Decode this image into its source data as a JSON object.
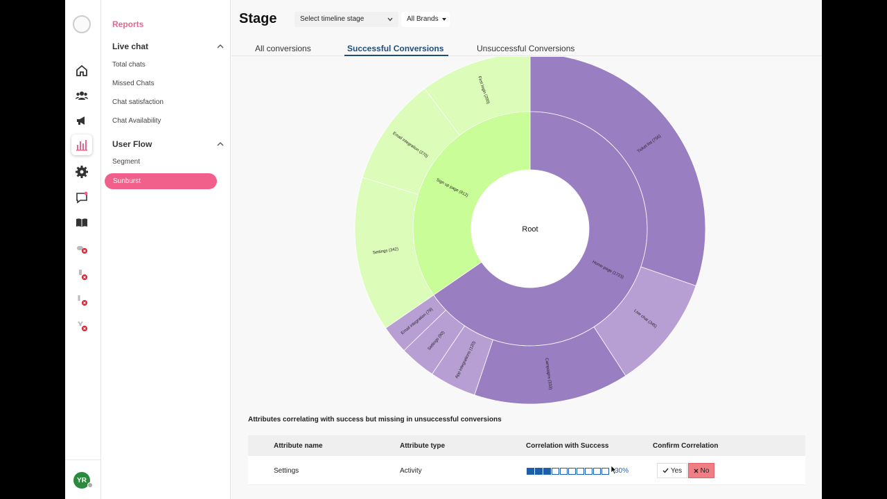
{
  "rail": {
    "avatar_initials": "YR",
    "icons": [
      "home-icon",
      "users-icon",
      "megaphone-icon",
      "reports-icon",
      "settings-icon",
      "chat-icon",
      "book-icon",
      "integration-error-icon",
      "plug-error-icon",
      "plug-error-icon-2",
      "plug-error-icon-3"
    ]
  },
  "menu": {
    "title": "Reports",
    "sections": [
      {
        "label": "Live chat",
        "items": [
          "Total chats",
          "Missed Chats",
          "Chat satisfaction",
          "Chat Availability"
        ]
      },
      {
        "label": "User Flow",
        "items": [
          "Segment",
          "Sunburst"
        ]
      }
    ],
    "active_item": "Sunburst"
  },
  "header": {
    "title": "Stage",
    "timeline_placeholder": "Select timeline stage",
    "brand_select": "All Brands"
  },
  "tabs": [
    "All conversions",
    "Successful Conversions",
    "Unsuccessful Conversions"
  ],
  "active_tab": "Successful Conversions",
  "colors": {
    "accent": "#f0608a",
    "tab_active": "#1f4d7a",
    "purple_inner": "#9a7ec2",
    "purple_outer_light": "#b79fd4",
    "green_inner": "#c8fd97",
    "green_outer": "#dcfcb9",
    "bar_blue": "#1f5fa8",
    "no_button": "#ef7f85"
  },
  "chart_data": {
    "type": "sunburst",
    "root": "Root",
    "nodes": [
      {
        "label": "Home page (1723)",
        "parent": "Root",
        "ring": 1
      },
      {
        "label": "Sign up page (812)",
        "parent": "Root",
        "ring": 1
      },
      {
        "label": "Ticket list (756)",
        "parent": "Home page (1723)",
        "ring": 2
      },
      {
        "label": "Live chat (345)",
        "parent": "Home page (1723)",
        "ring": 2
      },
      {
        "label": "Campaigns (333)",
        "parent": "Home page (1723)",
        "ring": 2
      },
      {
        "label": "App integrations (120)",
        "parent": "Home page (1723)",
        "ring": 2
      },
      {
        "label": "Settings (90)",
        "parent": "Home page (1723)",
        "ring": 2
      },
      {
        "label": "Email integration (79)",
        "parent": "Home page (1723)",
        "ring": 2
      },
      {
        "label": "Settings (342)",
        "parent": "Sign up page (812)",
        "ring": 2
      },
      {
        "label": "Email integration (270)",
        "parent": "Sign up page (812)",
        "ring": 2
      },
      {
        "label": "First login (200)",
        "parent": "Sign up page (812)",
        "ring": 2
      }
    ]
  },
  "table": {
    "caption": "Attributes correlating with success but missing in unsuccessful conversions",
    "headers": [
      "Attribute name",
      "Attribute type",
      "Correlation with Success",
      "Confirm Correlation"
    ],
    "rows": [
      {
        "name": "Settings",
        "type": "Activity",
        "correlation_pct": "30%",
        "correlation": 0.3,
        "yes": "Yes",
        "no": "No"
      }
    ]
  }
}
